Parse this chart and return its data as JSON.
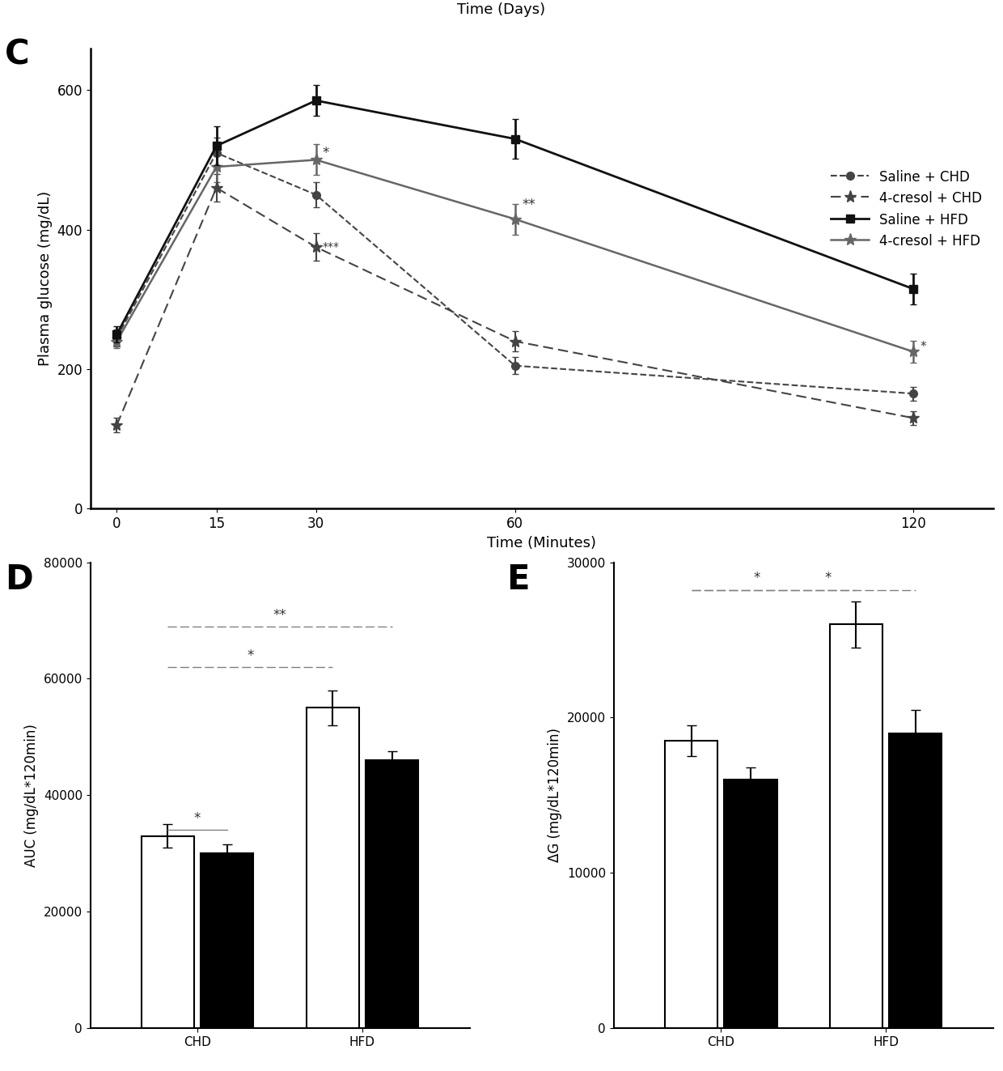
{
  "title_top": "Time (Days)",
  "line_x": [
    0,
    15,
    30,
    60,
    120
  ],
  "saline_CHD_y": [
    245,
    510,
    450,
    205,
    165
  ],
  "saline_CHD_err": [
    12,
    22,
    18,
    12,
    10
  ],
  "cresol_CHD_y": [
    120,
    460,
    375,
    240,
    130
  ],
  "cresol_CHD_err": [
    10,
    20,
    20,
    15,
    10
  ],
  "saline_HFD_y": [
    250,
    520,
    585,
    530,
    315
  ],
  "saline_HFD_err": [
    12,
    28,
    22,
    28,
    22
  ],
  "cresol_HFD_y": [
    240,
    490,
    500,
    415,
    225
  ],
  "cresol_HFD_err": [
    10,
    22,
    22,
    22,
    16
  ],
  "D_categories": [
    "CHD",
    "HFD"
  ],
  "D_saline_vals": [
    33000,
    55000
  ],
  "D_saline_err": [
    2000,
    3000
  ],
  "D_cresol_vals": [
    30000,
    46000
  ],
  "D_cresol_err": [
    1500,
    1500
  ],
  "E_categories": [
    "CHD",
    "HFD"
  ],
  "E_saline_vals": [
    18500,
    26000
  ],
  "E_saline_err": [
    1000,
    1500
  ],
  "E_cresol_vals": [
    16000,
    19000
  ],
  "E_cresol_err": [
    800,
    1500
  ]
}
